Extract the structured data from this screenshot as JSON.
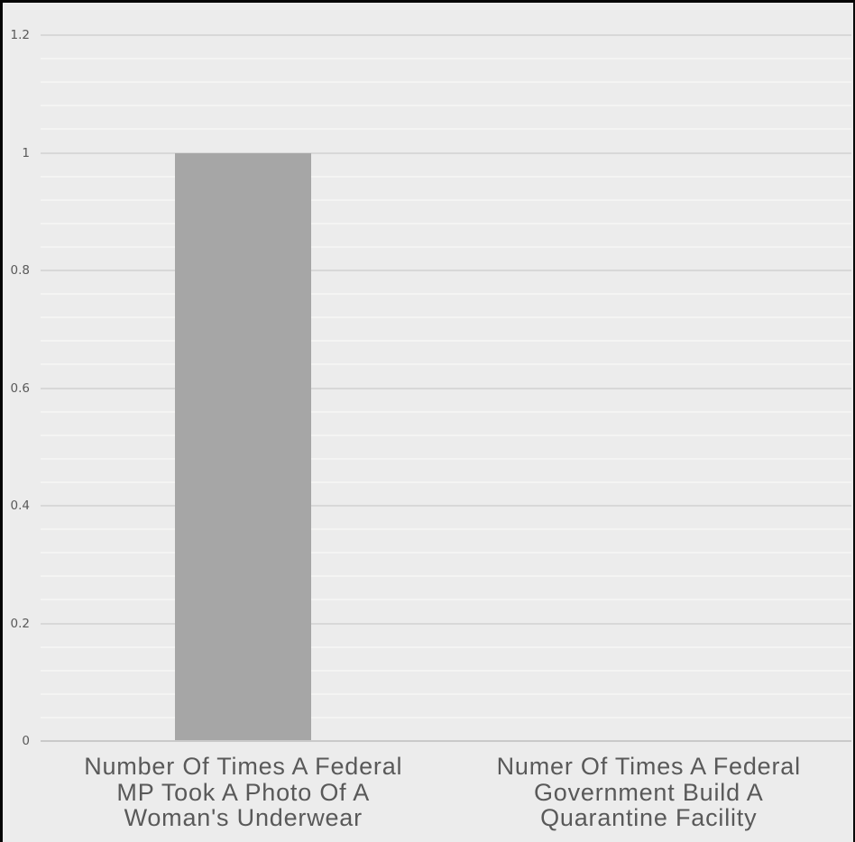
{
  "chart_data": {
    "type": "bar",
    "title": "",
    "xlabel": "",
    "ylabel": "",
    "categories": [
      "Number Of Times A Federal MP Took A Photo Of A Woman's Underwear",
      "Numer Of Times A Federal Government Build A Quarantine Facility"
    ],
    "category_lines": [
      [
        "Number Of Times A Federal",
        "MP Took A Photo Of A",
        "Woman's Underwear"
      ],
      [
        "Numer Of Times A Federal",
        "Government Build A",
        "Quarantine Facility"
      ]
    ],
    "values": [
      1,
      0
    ],
    "ylim": [
      0,
      1.2
    ],
    "y_major_ticks": [
      0,
      0.2,
      0.4,
      0.6,
      0.8,
      1,
      1.2
    ],
    "y_tick_labels": [
      "0",
      "0.2",
      "0.4",
      "0.6",
      "0.8",
      "1",
      "1.2"
    ],
    "y_minor_unit": 0.04,
    "grid": "horizontal major and minor gridlines, no vertical gridlines",
    "legend": "none",
    "colors": {
      "background": "#ececec",
      "bar": "#a6a6a6",
      "major_gridline": "#d8d8d8",
      "minor_gridline": "#f4f4f3",
      "axis_line": "#c9c9c9",
      "tick_text": "#595959",
      "label_text": "#595959",
      "frame": "#050505"
    }
  }
}
